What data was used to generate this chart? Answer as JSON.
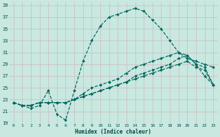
{
  "xlabel": "Humidex (Indice chaleur)",
  "bg_color": "#c8e8e0",
  "grid_color_major": "#b8c8c0",
  "grid_color_pink": "#d0b8c0",
  "line_color": "#006860",
  "xlim": [
    -0.5,
    23.5
  ],
  "ylim": [
    19,
    39.5
  ],
  "yticks": [
    19,
    21,
    23,
    25,
    27,
    29,
    31,
    33,
    35,
    37,
    39
  ],
  "xticks": [
    0,
    1,
    2,
    3,
    4,
    5,
    6,
    7,
    8,
    9,
    10,
    11,
    12,
    13,
    14,
    15,
    16,
    17,
    18,
    19,
    20,
    21,
    22,
    23
  ],
  "line1_x": [
    0,
    1,
    2,
    3,
    4,
    5,
    6,
    7,
    8,
    9,
    10,
    11,
    12,
    13,
    14,
    15,
    16,
    17,
    18,
    19,
    20,
    21,
    22,
    23
  ],
  "line1_y": [
    22.5,
    22.0,
    21.5,
    22.0,
    24.5,
    20.5,
    19.5,
    24.5,
    29.5,
    33.0,
    35.5,
    37.0,
    37.5,
    38.0,
    38.5,
    38.0,
    36.5,
    35.0,
    33.0,
    31.0,
    30.0,
    29.5,
    29.0,
    28.5
  ],
  "line2_x": [
    0,
    1,
    2,
    3,
    4,
    5,
    6,
    7,
    8,
    9,
    10,
    11,
    12,
    13,
    14,
    15,
    16,
    17,
    18,
    19,
    20,
    21,
    22,
    23
  ],
  "line2_y": [
    22.5,
    22.0,
    22.0,
    22.5,
    22.5,
    22.5,
    22.5,
    23.0,
    24.0,
    25.0,
    25.5,
    26.0,
    26.5,
    27.5,
    28.5,
    29.0,
    29.5,
    30.0,
    30.5,
    31.0,
    30.5,
    29.0,
    27.0,
    25.5
  ],
  "line3_x": [
    0,
    1,
    2,
    3,
    4,
    5,
    6,
    7,
    8,
    9,
    10,
    11,
    12,
    13,
    14,
    15,
    16,
    17,
    18,
    19,
    20,
    21,
    22,
    23
  ],
  "line3_y": [
    22.5,
    22.0,
    22.0,
    22.5,
    22.5,
    22.5,
    22.5,
    23.0,
    23.5,
    24.0,
    24.5,
    25.0,
    25.5,
    26.0,
    26.5,
    27.0,
    27.5,
    28.0,
    28.5,
    29.0,
    29.5,
    28.5,
    28.0,
    25.5
  ],
  "line4_x": [
    0,
    1,
    2,
    3,
    4,
    5,
    6,
    7,
    8,
    9,
    10,
    11,
    12,
    13,
    14,
    15,
    16,
    17,
    18,
    19,
    20,
    21,
    22,
    23
  ],
  "line4_y": [
    22.5,
    22.0,
    22.0,
    22.5,
    22.5,
    22.5,
    22.5,
    23.0,
    23.5,
    24.0,
    24.5,
    25.0,
    25.5,
    26.0,
    27.0,
    27.5,
    28.0,
    28.5,
    29.0,
    30.0,
    30.5,
    29.0,
    28.5,
    25.5
  ]
}
